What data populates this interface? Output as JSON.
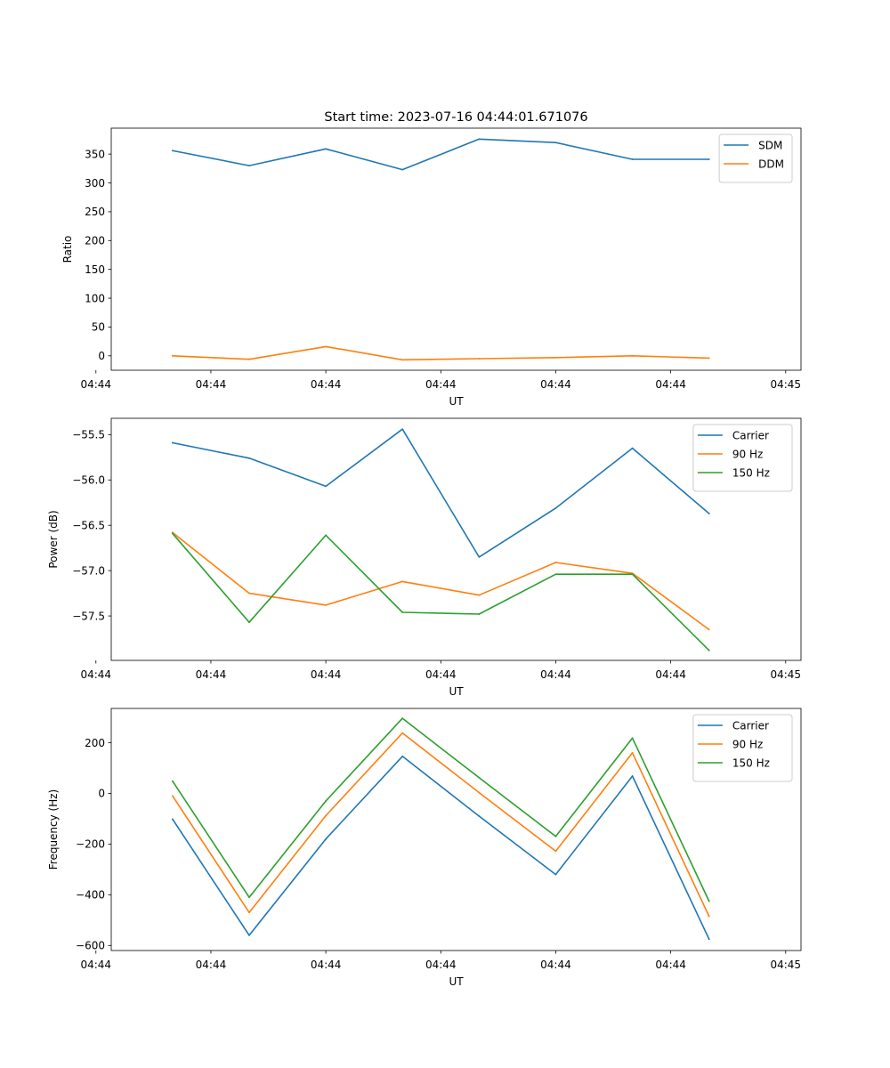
{
  "figure_title": "Start time: 2023-07-16 04:44:01.671076",
  "chart_data": [
    {
      "type": "line",
      "title": "Start time: 2023-07-16 04:44:01.671076",
      "xlabel": "UT",
      "ylabel": "Ratio",
      "x": [
        1,
        2,
        3,
        4,
        5,
        6,
        7,
        8
      ],
      "xlim": [
        0.2,
        9.2
      ],
      "xticks": [
        0,
        1.5,
        3,
        4.5,
        6,
        7.5,
        9
      ],
      "xtick_labels": [
        "04:44",
        "04:44",
        "04:44",
        "04:44",
        "04:44",
        "04:44",
        "04:45"
      ],
      "ylim": [
        -25,
        395
      ],
      "yticks": [
        0,
        50,
        100,
        150,
        200,
        250,
        300,
        350
      ],
      "ytick_labels": [
        "0",
        "50",
        "100",
        "150",
        "200",
        "250",
        "300",
        "350"
      ],
      "legend": "top-right",
      "series": [
        {
          "name": "SDM",
          "color": "#1f77b4",
          "values": [
            356,
            330,
            359,
            323,
            376,
            370,
            341,
            341
          ]
        },
        {
          "name": "DDM",
          "color": "#ff7f0e",
          "values": [
            0,
            -6,
            16,
            -7,
            -5,
            -3,
            0,
            -4
          ]
        }
      ]
    },
    {
      "type": "line",
      "xlabel": "UT",
      "ylabel": "Power (dB)",
      "x": [
        1,
        2,
        3,
        4,
        5,
        6,
        7,
        8
      ],
      "xlim": [
        0.2,
        9.2
      ],
      "xticks": [
        0,
        1.5,
        3,
        4.5,
        6,
        7.5,
        9
      ],
      "xtick_labels": [
        "04:44",
        "04:44",
        "04:44",
        "04:44",
        "04:44",
        "04:44",
        "04:45"
      ],
      "ylim": [
        -57.99,
        -55.32
      ],
      "yticks": [
        -57.5,
        -57.0,
        -56.5,
        -56.0,
        -55.5
      ],
      "ytick_labels": [
        "−57.5",
        "−57.0",
        "−56.5",
        "−56.0",
        "−55.5"
      ],
      "legend": "top-right",
      "series": [
        {
          "name": "Carrier",
          "color": "#1f77b4",
          "values": [
            -55.59,
            -55.76,
            -56.07,
            -55.44,
            -56.85,
            -56.31,
            -55.65,
            -56.37
          ]
        },
        {
          "name": "90 Hz",
          "color": "#ff7f0e",
          "values": [
            -56.58,
            -57.25,
            -57.38,
            -57.12,
            -57.27,
            -56.91,
            -57.03,
            -57.65
          ]
        },
        {
          "name": "150 Hz",
          "color": "#2ca02c",
          "values": [
            -56.59,
            -57.57,
            -56.61,
            -57.46,
            -57.48,
            -57.04,
            -57.04,
            -57.88
          ]
        }
      ]
    },
    {
      "type": "line",
      "xlabel": "UT",
      "ylabel": "Frequency (Hz)",
      "x": [
        1,
        2,
        3,
        4,
        5,
        6,
        7,
        8
      ],
      "xlim": [
        0.2,
        9.2
      ],
      "xticks": [
        0,
        1.5,
        3,
        4.5,
        6,
        7.5,
        9
      ],
      "xtick_labels": [
        "04:44",
        "04:44",
        "04:44",
        "04:44",
        "04:44",
        "04:44",
        "04:45"
      ],
      "ylim": [
        -620,
        335
      ],
      "yticks": [
        -600,
        -400,
        -200,
        0,
        200
      ],
      "ytick_labels": [
        "−600",
        "−400",
        "−200",
        "0",
        "200"
      ],
      "legend": "top-right",
      "series": [
        {
          "name": "Carrier",
          "color": "#1f77b4",
          "values": [
            -102,
            -560,
            -180,
            146,
            -90,
            -320,
            68,
            -575
          ]
        },
        {
          "name": "90 Hz",
          "color": "#ff7f0e",
          "values": [
            -10,
            -470,
            -88,
            238,
            3,
            -228,
            160,
            -485
          ]
        },
        {
          "name": "150 Hz",
          "color": "#2ca02c",
          "values": [
            48,
            -410,
            -30,
            296,
            62,
            -170,
            218,
            -425
          ]
        }
      ]
    }
  ]
}
